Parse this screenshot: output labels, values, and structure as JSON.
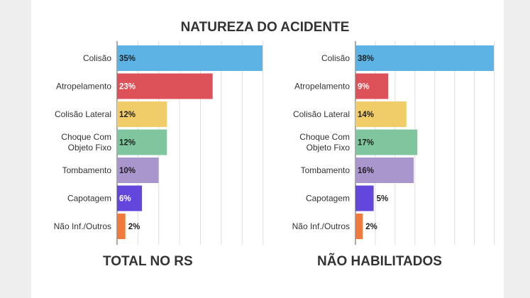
{
  "title": "NATUREZA DO ACIDENTE",
  "chart_data": [
    {
      "type": "bar",
      "orientation": "horizontal",
      "title": "TOTAL NO RS",
      "categories": [
        "Colisão",
        "Atropelamento",
        "Colisão Lateral",
        "Choque Com Objeto Fixo",
        "Tombamento",
        "Capotagem",
        "Não Inf./Outros"
      ],
      "category_lines": [
        [
          "Colisão"
        ],
        [
          "Atropelamento"
        ],
        [
          "Colisão Lateral"
        ],
        [
          "Choque Com",
          "Objeto Fixo"
        ],
        [
          "Tombamento"
        ],
        [
          "Capotagem"
        ],
        [
          "Não Inf./Outros"
        ]
      ],
      "values": [
        35,
        23,
        12,
        12,
        10,
        6,
        2
      ],
      "labels": [
        "35%",
        "23%",
        "12%",
        "12%",
        "10%",
        "6%",
        "2%"
      ],
      "colors": [
        "#5cb3e4",
        "#dc5258",
        "#f1cd6a",
        "#7fc69f",
        "#a996cc",
        "#6347dd",
        "#f2793e"
      ],
      "value_label_colors": [
        "#222222",
        "#ffffff",
        "#222222",
        "#222222",
        "#222222",
        "#ffffff",
        "#222222"
      ],
      "xlim": [
        0,
        35
      ],
      "grid": true
    },
    {
      "type": "bar",
      "orientation": "horizontal",
      "title": "NÃO HABILITADOS",
      "categories": [
        "Colisão",
        "Atropelamento",
        "Colisão Lateral",
        "Choque Com Objeto Fixo",
        "Tombamento",
        "Capotagem",
        "Não Inf./Outros"
      ],
      "category_lines": [
        [
          "Colisão"
        ],
        [
          "Atropelamento"
        ],
        [
          "Colisão Lateral"
        ],
        [
          "Choque Com",
          "Objeto Fixo"
        ],
        [
          "Tombamento"
        ],
        [
          "Capotagem"
        ],
        [
          "Não Inf./Outros"
        ]
      ],
      "values": [
        38,
        9,
        14,
        17,
        16,
        5,
        2
      ],
      "labels": [
        "38%",
        "9%",
        "14%",
        "17%",
        "16%",
        "5%",
        "2%"
      ],
      "colors": [
        "#5cb3e4",
        "#dc5258",
        "#f1cd6a",
        "#7fc69f",
        "#a996cc",
        "#6347dd",
        "#f2793e"
      ],
      "value_label_colors": [
        "#222222",
        "#ffffff",
        "#222222",
        "#222222",
        "#222222",
        "#ffffff",
        "#222222"
      ],
      "xlim": [
        0,
        38
      ],
      "grid": true
    }
  ]
}
